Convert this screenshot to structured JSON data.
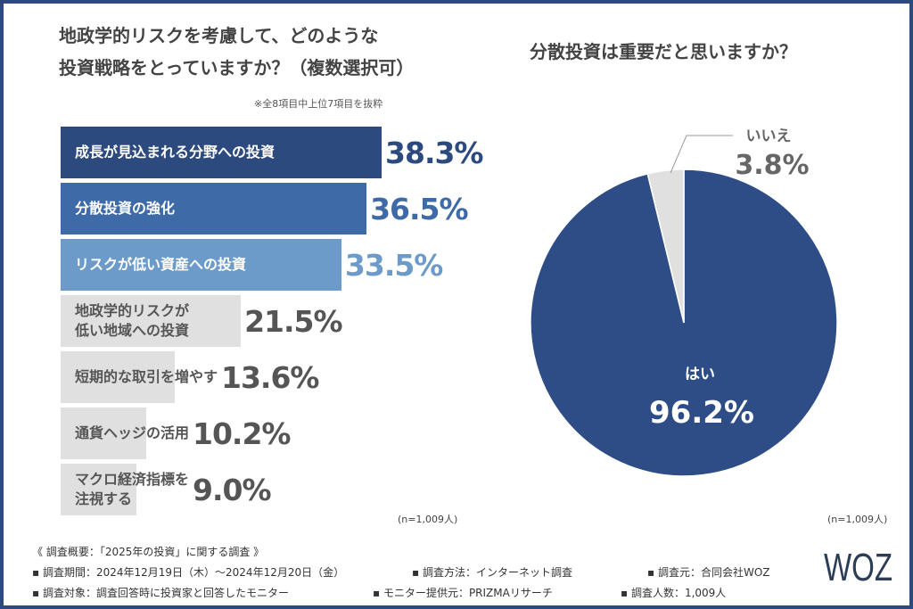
{
  "left": {
    "title_line1": "地政学的リスクを考慮して、どのような",
    "title_line2": "投資戦略をとっていますか？（複数選択可）",
    "note": "※全8項目中上位7項目を抜粋",
    "n": "(n=1,009人)"
  },
  "right": {
    "title": "分散投資は重要だと思いますか？",
    "n": "(n=1,009人)"
  },
  "chart_data": [
    {
      "type": "bar",
      "orientation": "horizontal",
      "title": "地政学的リスクを考慮して、どのような投資戦略をとっていますか？（複数選択可）",
      "categories": [
        "成長が見込まれる分野への投資",
        "分散投資の強化",
        "リスクが低い資産への投資",
        "地政学的リスクが低い地域への投資",
        "短期的な取引を増やす",
        "通貨ヘッジの活用",
        "マクロ経済指標を注視する"
      ],
      "label_lines": [
        [
          "成長が見込まれる分野への投資"
        ],
        [
          "分散投資の強化"
        ],
        [
          "リスクが低い資産への投資"
        ],
        [
          "地政学的リスクが",
          "低い地域への投資"
        ],
        [
          "短期的な取引を増やす"
        ],
        [
          "通貨ヘッジの活用"
        ],
        [
          "マクロ経済指標を",
          "注視する"
        ]
      ],
      "values": [
        38.3,
        36.5,
        33.5,
        21.5,
        13.6,
        10.2,
        9.0
      ],
      "value_labels": [
        "38.3%",
        "36.5%",
        "33.5%",
        "21.5%",
        "13.6%",
        "10.2%",
        "9.0%"
      ],
      "colors": [
        "#2c4a7e",
        "#3f6aa8",
        "#6d9bc9",
        "#e0e0e0",
        "#e0e0e0",
        "#e0e0e0",
        "#e0e0e0"
      ],
      "value_colors": [
        "#2c4a7e",
        "#3f6aa8",
        "#6d9bc9",
        "#555555",
        "#555555",
        "#555555",
        "#555555"
      ],
      "unit": "%"
    },
    {
      "type": "pie",
      "title": "分散投資は重要だと思いますか？",
      "slices": [
        {
          "label": "はい",
          "value": 96.2,
          "value_label": "96.2%",
          "color": "#2e4d86"
        },
        {
          "label": "いいえ",
          "value": 3.8,
          "value_label": "3.8%",
          "color": "#e0e0e0"
        }
      ]
    }
  ],
  "footer": {
    "heading": "《 調査概要：「2025年の投資」に関する調査 》",
    "items": [
      "▪ 調査期間：2024年12月19日（木）～2024年12月20日（金）",
      "▪ 調査方法：インターネット調査",
      "▪ 調査元：合同会社WOZ",
      "▪ 調査対象：調査回答時に投資家と回答したモニター",
      "▪ モニター提供元：PRIZMAリサーチ",
      "▪ 調査人数：1,009人"
    ],
    "logo": "WOZ"
  }
}
